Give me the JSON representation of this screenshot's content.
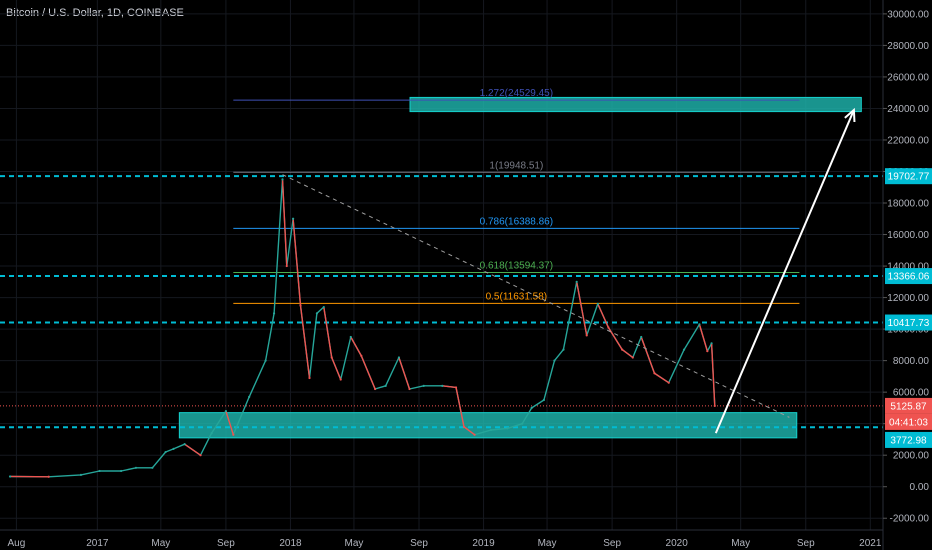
{
  "header": {
    "title": "Bitcoin / U.S. Dollar, 1D, COINBASE"
  },
  "colors": {
    "background": "#000000",
    "up": "#26a69a",
    "down": "#ef5350",
    "horizontal_line": "#00bcd4",
    "zone_fill": "#1fb5ad",
    "zone_border": "#15d1cd",
    "price_badge": "#ef5350",
    "level_badge": "#00bcd4",
    "fib_1": "#787b86",
    "fib_0786": "#2196f3",
    "fib_0618": "#4caf50",
    "fib_05": "#ff9800",
    "fib_1272": "#3f51b5",
    "arrow": "#ffffff",
    "trendline": "#9e9e9e"
  },
  "chart_data": {
    "type": "line",
    "title": "Bitcoin / U.S. Dollar, 1D, COINBASE",
    "x_tick_labels": [
      "Aug",
      "2017",
      "May",
      "Sep",
      "2018",
      "May",
      "Sep",
      "2019",
      "May",
      "Sep",
      "2020",
      "May",
      "Sep",
      "2021"
    ],
    "y_tick_labels": [
      "30000.00",
      "28000.00",
      "26000.00",
      "24000.00",
      "22000.00",
      "20000.00",
      "18000.00",
      "16000.00",
      "14000.00",
      "12000.00",
      "10000.00",
      "8000.00",
      "6000.00",
      "4000.00",
      "2000.00",
      "0.00",
      "-2000.00"
    ],
    "ylim": [
      -3000,
      30500
    ],
    "price_series": {
      "name": "",
      "x": [
        "2016-07-20",
        "2016-10-01",
        "2016-12-01",
        "2017-01-05",
        "2017-02-15",
        "2017-03-15",
        "2017-04-15",
        "2017-05-10",
        "2017-05-25",
        "2017-06-15",
        "2017-07-15",
        "2017-08-05",
        "2017-09-01",
        "2017-09-15",
        "2017-10-15",
        "2017-11-15",
        "2017-12-01",
        "2017-12-17",
        "2017-12-25",
        "2018-01-06",
        "2018-01-20",
        "2018-02-06",
        "2018-02-20",
        "2018-03-05",
        "2018-03-20",
        "2018-04-06",
        "2018-04-25",
        "2018-05-15",
        "2018-06-10",
        "2018-06-30",
        "2018-07-25",
        "2018-08-14",
        "2018-09-10",
        "2018-10-15",
        "2018-11-10",
        "2018-11-25",
        "2018-12-15",
        "2019-01-15",
        "2019-02-15",
        "2019-03-15",
        "2019-04-02",
        "2019-04-25",
        "2019-05-15",
        "2019-06-01",
        "2019-06-26",
        "2019-07-15",
        "2019-08-05",
        "2019-08-25",
        "2019-09-20",
        "2019-10-10",
        "2019-10-26",
        "2019-11-20",
        "2019-12-17",
        "2020-01-15",
        "2020-02-13",
        "2020-02-28",
        "2020-03-07",
        "2020-03-13"
      ],
      "y": [
        650,
        630,
        750,
        1000,
        1000,
        1200,
        1200,
        2200,
        2400,
        2700,
        2000,
        3400,
        4800,
        3300,
        5700,
        8000,
        11000,
        19500,
        14000,
        17000,
        11500,
        6900,
        11000,
        11400,
        8200,
        6800,
        9500,
        8300,
        6200,
        6400,
        8200,
        6200,
        6400,
        6400,
        6300,
        3800,
        3300,
        3600,
        3700,
        4000,
        5000,
        5500,
        8000,
        8700,
        13000,
        9600,
        11600,
        10100,
        8700,
        8200,
        9500,
        7200,
        6600,
        8700,
        10300,
        8600,
        9100,
        5126
      ]
    },
    "horizontal_levels": [
      {
        "value": 19702.77,
        "label": "19702.77"
      },
      {
        "value": 13366.06,
        "label": "13366.06"
      },
      {
        "value": 10417.73,
        "label": "10417.73"
      },
      {
        "value": 3772.98,
        "label": "3772.98"
      }
    ],
    "fibonacci_levels": [
      {
        "ratio": "1.272",
        "value": 24529.45,
        "label": "1.272(24529.45)"
      },
      {
        "ratio": "1",
        "value": 19948.51,
        "label": "1(19948.51)"
      },
      {
        "ratio": "0.786",
        "value": 16388.86,
        "label": "0.786(16388.86)"
      },
      {
        "ratio": "0.618",
        "value": 13594.37,
        "label": "0.618(13594.37)"
      },
      {
        "ratio": "0.5",
        "value": 11631.58,
        "label": "0.5(11631.58)"
      }
    ],
    "fib_x_range": [
      "2017-09-15",
      "2020-08-20"
    ],
    "zones": [
      {
        "x": [
          "2017-06-05",
          "2020-08-15"
        ],
        "y": [
          3100,
          4700
        ]
      },
      {
        "x": [
          "2018-08-15",
          "2020-12-15"
        ],
        "y": [
          23800,
          24700
        ]
      }
    ],
    "trendline": {
      "x": [
        "2017-12-17",
        "2020-08-01"
      ],
      "y": [
        19800,
        4400
      ]
    },
    "arrow": {
      "x": [
        "2020-03-15",
        "2020-12-01"
      ],
      "y": [
        3400,
        23900
      ]
    },
    "last_price": {
      "value": 5125.87,
      "label": "5125.87",
      "countdown": "04:41:03"
    },
    "dotted_price_line": 5125.87
  },
  "price_scale": {
    "badges": {
      "price": "5125.87",
      "countdown": "04:41:03",
      "support": "3772.98",
      "level_10417": "10417.73",
      "level_13366": "13366.06",
      "level_19702": "19702.77"
    }
  }
}
